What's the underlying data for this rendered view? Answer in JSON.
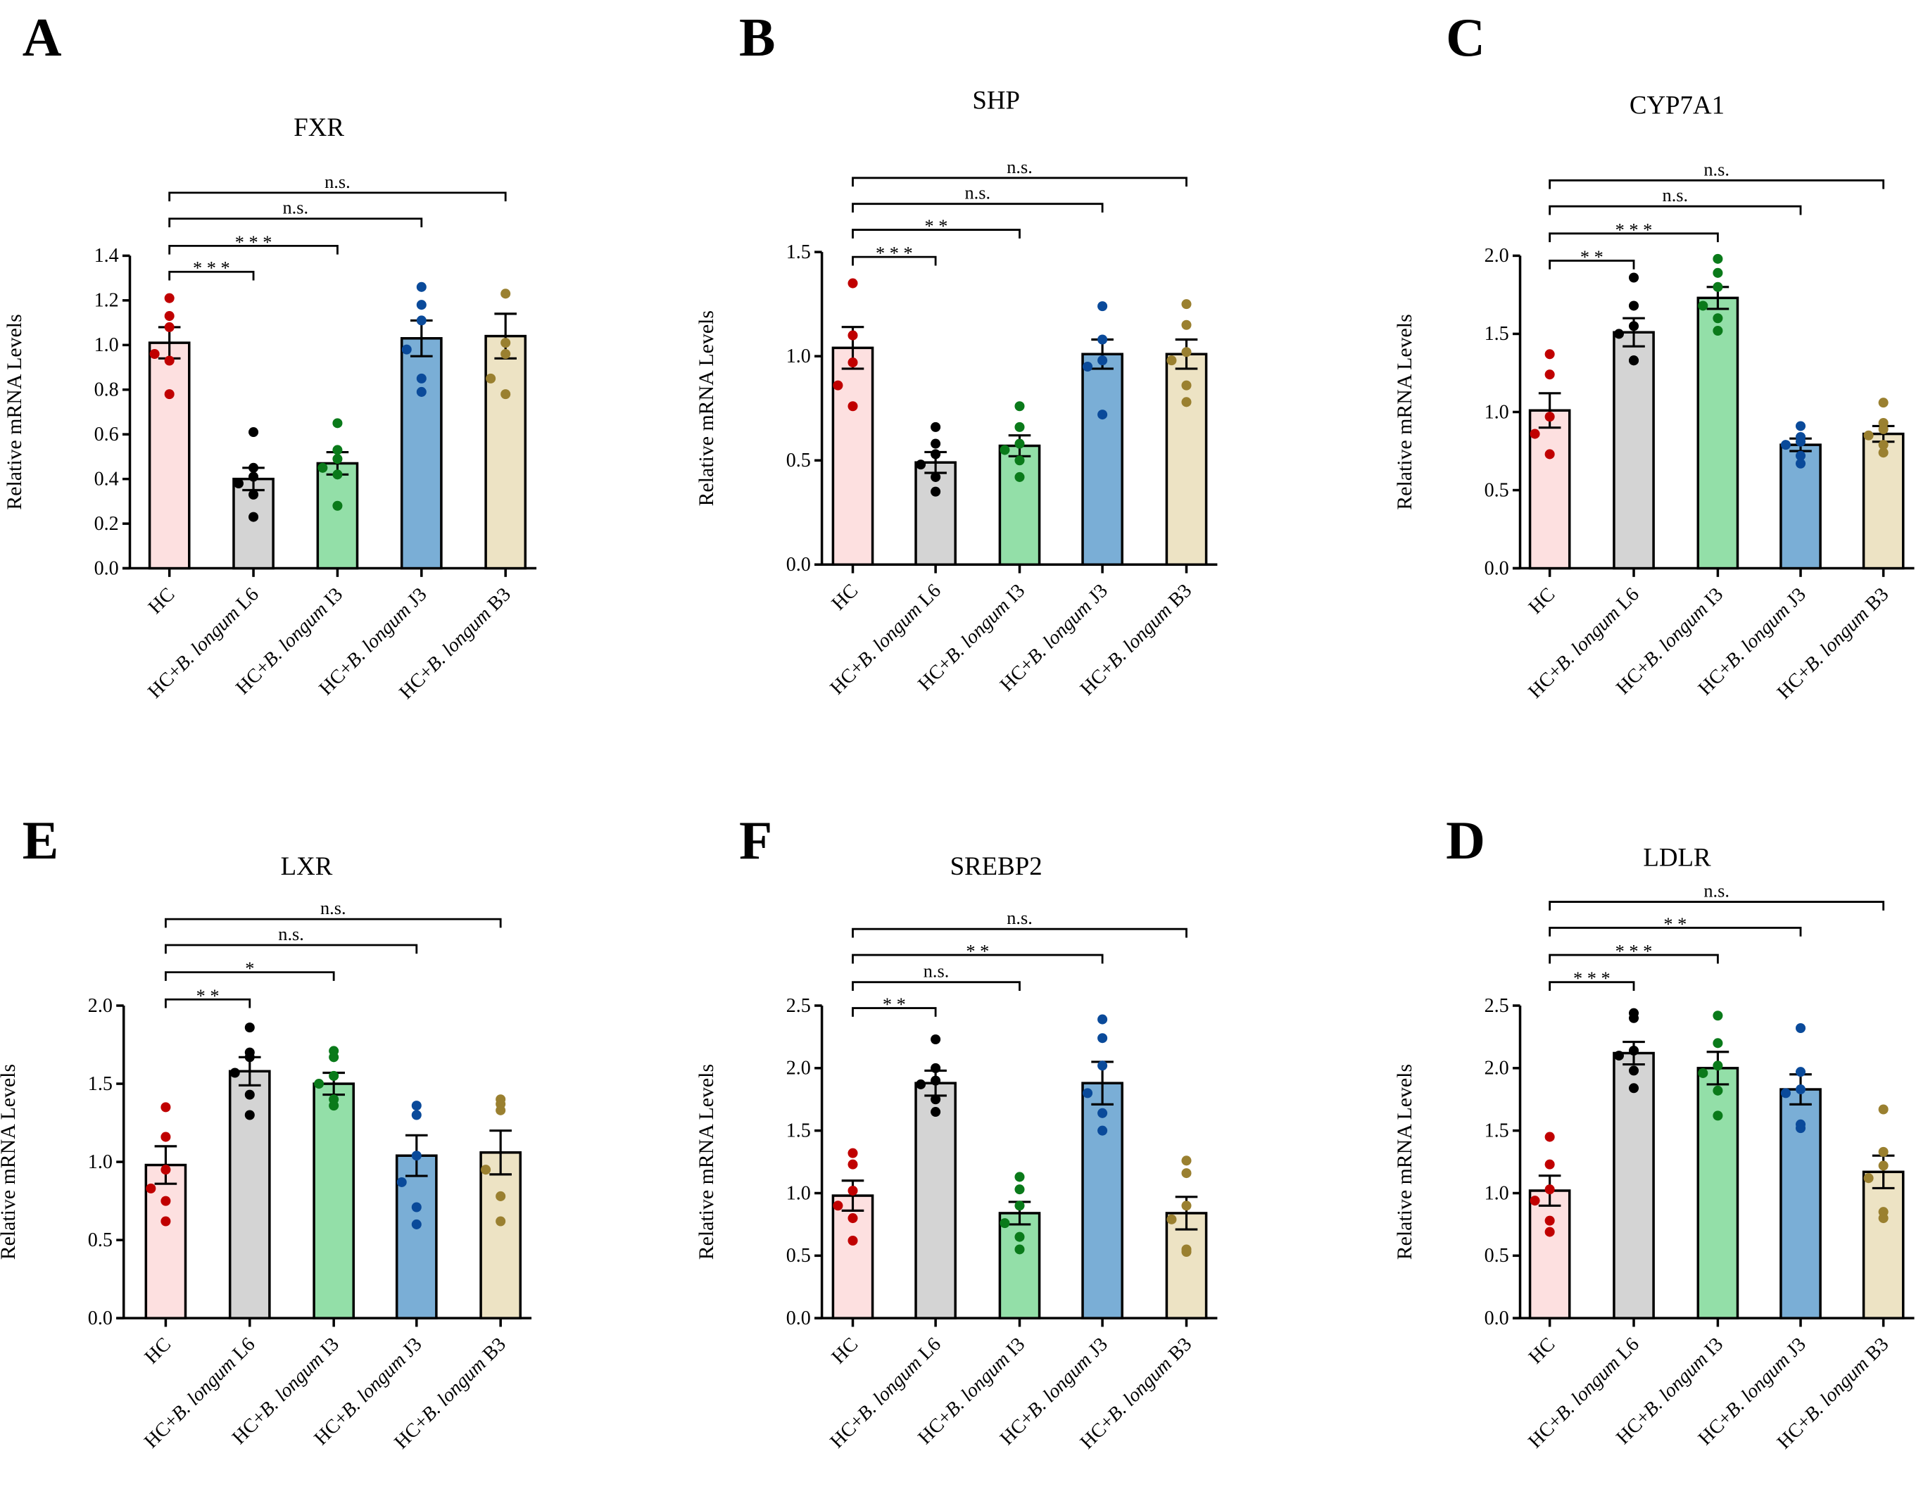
{
  "colors": {
    "fills": [
      "#fde0e0",
      "#d4d4d4",
      "#93dfa8",
      "#7aaed6",
      "#ede3c4"
    ],
    "points": [
      "#c00000",
      "#000000",
      "#0a7a1a",
      "#0a4a9a",
      "#9a8030"
    ]
  },
  "chart_data": [
    {
      "type": "bar",
      "panel": "A",
      "title": "FXR",
      "ylabel": "Relative mRNA Levels",
      "ylim": [
        0,
        1.4
      ],
      "ticks": [
        "0.0",
        "0.2",
        "0.4",
        "0.6",
        "0.8",
        "1.0",
        "1.2",
        "1.4"
      ],
      "tick_values": [
        0,
        0.2,
        0.4,
        0.6,
        0.8,
        1.0,
        1.2,
        1.4
      ],
      "categories": [
        "HC",
        "HC+B. longum L6",
        "HC+B. longum I3",
        "HC+B. longum J3",
        "HC+B. longum B3"
      ],
      "means": [
        1.01,
        0.4,
        0.47,
        1.03,
        1.04
      ],
      "sem": [
        0.07,
        0.05,
        0.05,
        0.08,
        0.1
      ],
      "points": [
        [
          1.21,
          1.13,
          1.08,
          0.96,
          0.93,
          0.78
        ],
        [
          0.61,
          0.45,
          0.41,
          0.38,
          0.33,
          0.23
        ],
        [
          0.65,
          0.53,
          0.49,
          0.45,
          0.42,
          0.28
        ],
        [
          1.26,
          1.18,
          1.11,
          0.98,
          0.85,
          0.79
        ],
        [
          1.23,
          1.01,
          0.96,
          0.85,
          0.78
        ]
      ],
      "significance": [
        "***",
        "***",
        "n.s.",
        "n.s."
      ]
    },
    {
      "type": "bar",
      "panel": "B",
      "title": "SHP",
      "ylabel": "Relative mRNA Levels",
      "ylim": [
        0,
        1.5
      ],
      "ticks": [
        "0.0",
        "0.5",
        "1.0",
        "1.5"
      ],
      "tick_values": [
        0,
        0.5,
        1.0,
        1.5
      ],
      "categories": [
        "HC",
        "HC+B. longum L6",
        "HC+B. longum I3",
        "HC+B. longum J3",
        "HC+B. longum B3"
      ],
      "means": [
        1.04,
        0.49,
        0.57,
        1.01,
        1.01
      ],
      "sem": [
        0.1,
        0.05,
        0.05,
        0.07,
        0.07
      ],
      "points": [
        [
          1.35,
          1.1,
          0.97,
          0.86,
          0.76
        ],
        [
          0.66,
          0.58,
          0.53,
          0.48,
          0.42,
          0.35
        ],
        [
          0.76,
          0.66,
          0.58,
          0.55,
          0.5,
          0.42
        ],
        [
          1.24,
          1.08,
          0.98,
          0.95,
          0.72
        ],
        [
          1.25,
          1.15,
          1.02,
          0.98,
          0.86,
          0.78
        ]
      ],
      "significance": [
        "***",
        "**",
        "n.s.",
        "n.s."
      ]
    },
    {
      "type": "bar",
      "panel": "C",
      "title": "CYP7A1",
      "ylabel": "Relative mRNA Levels",
      "ylim": [
        0,
        2.0
      ],
      "ticks": [
        "0.0",
        "0.5",
        "1.0",
        "1.5",
        "2.0"
      ],
      "tick_values": [
        0,
        0.5,
        1.0,
        1.5,
        2.0
      ],
      "categories": [
        "HC",
        "HC+B. longum L6",
        "HC+B. longum I3",
        "HC+B. longum J3",
        "HC+B. longum B3"
      ],
      "means": [
        1.01,
        1.51,
        1.73,
        0.79,
        0.86
      ],
      "sem": [
        0.11,
        0.09,
        0.07,
        0.04,
        0.05
      ],
      "points": [
        [
          1.37,
          1.24,
          0.97,
          0.86,
          0.73
        ],
        [
          1.86,
          1.68,
          1.55,
          1.5,
          1.33,
          1.33
        ],
        [
          1.98,
          1.89,
          1.8,
          1.68,
          1.6,
          1.52
        ],
        [
          0.91,
          0.84,
          0.81,
          0.79,
          0.72,
          0.67
        ],
        [
          1.06,
          0.93,
          0.89,
          0.85,
          0.79,
          0.74
        ]
      ],
      "significance": [
        "**",
        "***",
        "n.s.",
        "n.s."
      ]
    },
    {
      "type": "bar",
      "panel": "E",
      "title": "LXR",
      "ylabel": "Relative mRNA Levels",
      "ylim": [
        0,
        2.0
      ],
      "ticks": [
        "0.0",
        "0.5",
        "1.0",
        "1.5",
        "2.0"
      ],
      "tick_values": [
        0,
        0.5,
        1.0,
        1.5,
        2.0
      ],
      "categories": [
        "HC",
        "HC+B. longum L6",
        "HC+B. longum I3",
        "HC+B. longum J3",
        "HC+B. longum B3"
      ],
      "means": [
        0.98,
        1.58,
        1.5,
        1.04,
        1.06
      ],
      "sem": [
        0.12,
        0.09,
        0.07,
        0.13,
        0.14
      ],
      "points": [
        [
          1.35,
          1.16,
          0.95,
          0.83,
          0.75,
          0.62
        ],
        [
          1.86,
          1.7,
          1.67,
          1.57,
          1.43,
          1.3
        ],
        [
          1.71,
          1.67,
          1.55,
          1.5,
          1.4,
          1.36
        ],
        [
          1.36,
          1.3,
          1.04,
          0.87,
          0.71,
          0.6
        ],
        [
          1.4,
          1.37,
          1.33,
          0.95,
          0.78,
          0.62
        ]
      ],
      "significance": [
        "**",
        "*",
        "n.s.",
        "n.s."
      ]
    },
    {
      "type": "bar",
      "panel": "F",
      "title": "SREBP2",
      "ylabel": "Relative mRNA Levels",
      "ylim": [
        0,
        2.5
      ],
      "ticks": [
        "0.0",
        "0.5",
        "1.0",
        "1.5",
        "2.0",
        "2.5"
      ],
      "tick_values": [
        0,
        0.5,
        1.0,
        1.5,
        2.0,
        2.5
      ],
      "categories": [
        "HC",
        "HC+B. longum L6",
        "HC+B. longum I3",
        "HC+B. longum J3",
        "HC+B. longum B3"
      ],
      "means": [
        0.98,
        1.88,
        0.84,
        1.88,
        0.84
      ],
      "sem": [
        0.12,
        0.1,
        0.09,
        0.17,
        0.13
      ],
      "points": [
        [
          1.32,
          1.23,
          1.02,
          0.9,
          0.8,
          0.62
        ],
        [
          2.23,
          2.0,
          1.9,
          1.87,
          1.75,
          1.65
        ],
        [
          1.13,
          1.03,
          0.9,
          0.76,
          0.65,
          0.55
        ],
        [
          2.39,
          2.24,
          2.02,
          1.8,
          1.64,
          1.5
        ],
        [
          1.26,
          1.16,
          0.9,
          0.79,
          0.55,
          0.53
        ]
      ],
      "significance": [
        "**",
        "n.s.",
        "**",
        "n.s."
      ]
    },
    {
      "type": "bar",
      "panel": "D",
      "title": "LDLR",
      "ylabel": "Relative mRNA Levels",
      "ylim": [
        0,
        2.5
      ],
      "ticks": [
        "0.0",
        "0.5",
        "1.0",
        "1.5",
        "2.0",
        "2.5"
      ],
      "tick_values": [
        0,
        0.5,
        1.0,
        1.5,
        2.0,
        2.5
      ],
      "categories": [
        "HC",
        "HC+B. longum L6",
        "HC+B. longum I3",
        "HC+B. longum J3",
        "HC+B. longum B3"
      ],
      "means": [
        1.02,
        2.12,
        2.0,
        1.83,
        1.17
      ],
      "sem": [
        0.12,
        0.09,
        0.13,
        0.12,
        0.13
      ],
      "points": [
        [
          1.45,
          1.23,
          1.03,
          0.94,
          0.78,
          0.69
        ],
        [
          2.44,
          2.4,
          2.14,
          2.1,
          1.98,
          1.84
        ],
        [
          2.42,
          2.2,
          2.02,
          1.96,
          1.82,
          1.62
        ],
        [
          2.32,
          1.97,
          1.83,
          1.8,
          1.55,
          1.52
        ],
        [
          1.67,
          1.33,
          1.22,
          1.12,
          0.85,
          0.8
        ]
      ],
      "significance": [
        "***",
        "***",
        "**",
        "n.s."
      ]
    }
  ]
}
